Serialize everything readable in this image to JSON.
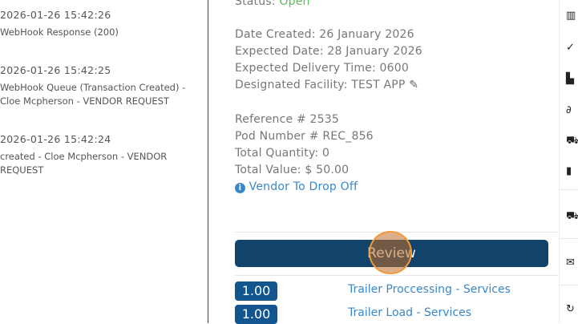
{
  "log": [
    {
      "time": "2026-01-26 15:42:26",
      "message": "WebHook Response (200)"
    },
    {
      "time": "2026-01-26 15:42:25",
      "message": "WebHook Queue (Transaction Created) - Cloe Mcpherson - VENDOR REQUEST"
    },
    {
      "time": "2026-01-26 15:42:24",
      "message": "created - Cloe Mcpherson - VENDOR REQUEST"
    }
  ],
  "details": {
    "status_label": "Status:",
    "status_value": "Open",
    "date_created": "Date Created: 26 January 2026",
    "expected_date": "Expected Date: 28 January 2026",
    "expected_time": "Expected Delivery Time: 0600",
    "facility": "Designated Facility: TEST APP",
    "reference": "Reference # 2535",
    "pod": "Pod Number # REC_856",
    "total_qty": "Total Quantity: 0",
    "total_value": "Total Value: $ 50.00",
    "vendor_note": "Vendor To Drop Off"
  },
  "review_label": "Review",
  "services": [
    {
      "qty": "1.00",
      "name": "Trailer Proccessing - Services"
    },
    {
      "qty": "1.00",
      "name": "Trailer Load - Services"
    }
  ],
  "colors": {
    "primary": "#12436b",
    "status_open": "#5cb85c",
    "link": "#3a87c8"
  },
  "sidebar_icons": [
    "trailer-icon",
    "check-icon",
    "pdf-icon",
    "signature-icon",
    "forklift-icon",
    "document-icon",
    "truck-icon",
    "envelope-icon",
    "refresh-icon"
  ]
}
